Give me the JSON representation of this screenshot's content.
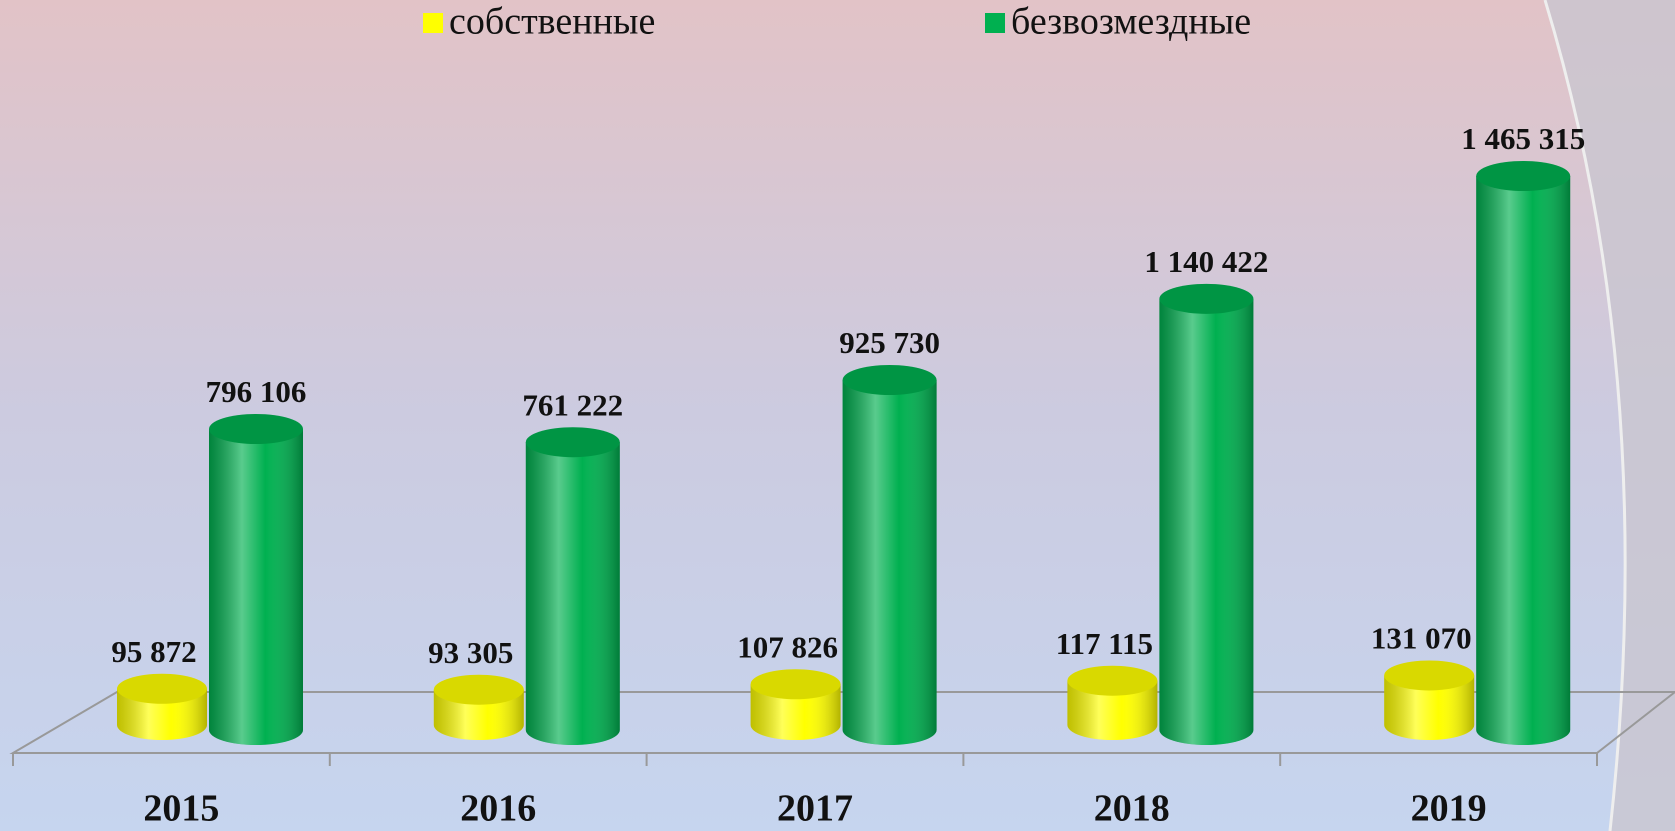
{
  "chart_data": {
    "type": "bar3d",
    "categories": [
      "2015",
      "2016",
      "2017",
      "2018",
      "2019"
    ],
    "series": [
      {
        "name": "собственные",
        "color": "#ffff00",
        "values": [
          95872,
          93305,
          107826,
          117115,
          131070
        ],
        "value_labels": [
          "95 872",
          "93 305",
          "107 826",
          "117 115",
          "131 070"
        ]
      },
      {
        "name": "безвозмездные",
        "color": "#00b050",
        "values": [
          796106,
          761222,
          925730,
          1140422,
          1465315
        ],
        "value_labels": [
          "796 106",
          "761 222",
          "925 730",
          "1 140 422",
          "1 465 315"
        ]
      }
    ]
  }
}
